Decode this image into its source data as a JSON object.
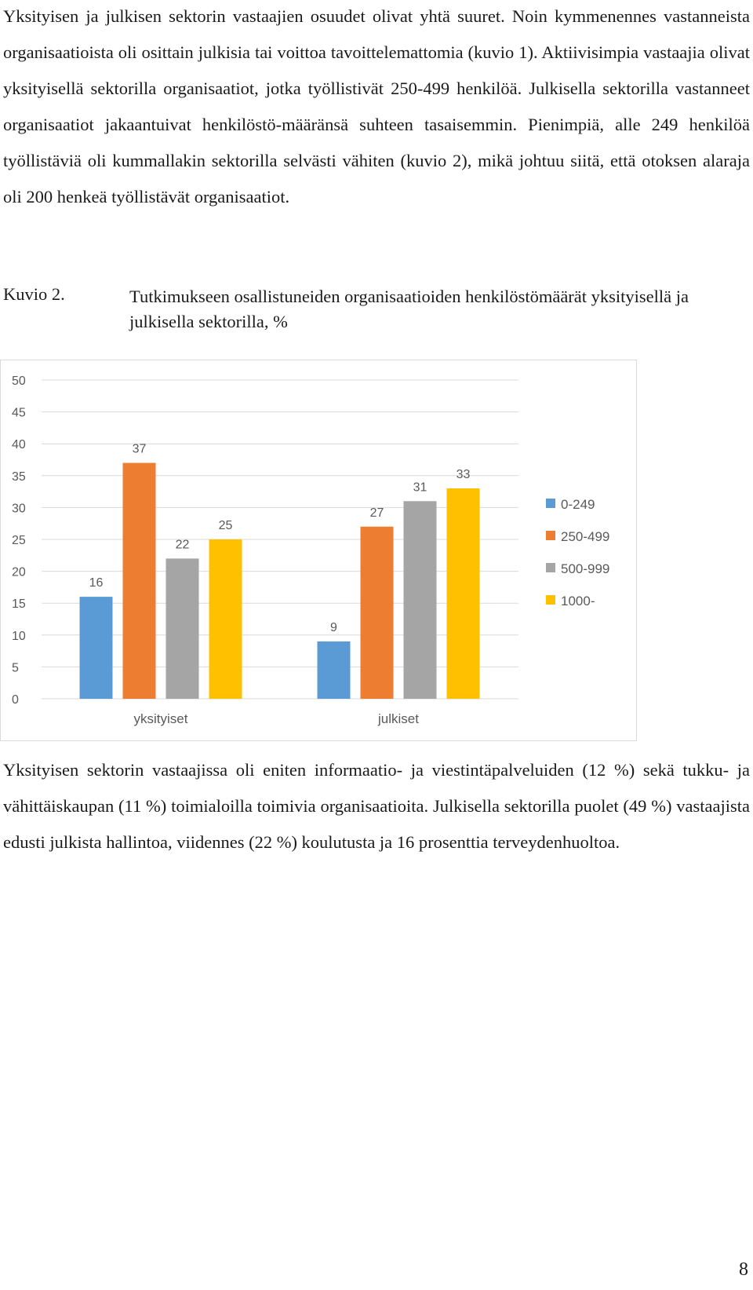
{
  "paragraph_before": "Yksityisen ja julkisen sektorin vastaajien osuudet olivat yhtä suuret. Noin kymmenennes vastanneista organisaatioista oli osittain julkisia tai voittoa tavoittelemattomia (kuvio 1). Aktiivisimpia vastaajia olivat yksityisellä sektorilla organisaatiot, jotka työllistivät 250-499 henkilöä. Julkisella sektorilla vastanneet organisaatiot jakaantuivat henkilöstö-määränsä suhteen tasaisemmin. Pienimpiä, alle 249 henkilöä työllistäviä oli kummallakin sektorilla selvästi vähiten (kuvio 2), mikä johtuu siitä, että otoksen alaraja oli 200 henkeä työllistävät organisaatiot.",
  "caption": {
    "label": "Kuvio 2.",
    "text": "Tutkimukseen osallistuneiden organisaatioiden henkilöstömäärät yksityisellä ja julkisella sektorilla, %"
  },
  "chart_data": {
    "type": "bar",
    "title": "",
    "xlabel": "",
    "ylabel": "",
    "categories": [
      "yksityiset",
      "julkiset"
    ],
    "series": [
      {
        "name": "0-249",
        "color": "#5b9bd5",
        "values": [
          16,
          9
        ]
      },
      {
        "name": "250-499",
        "color": "#ed7d31",
        "values": [
          37,
          27
        ]
      },
      {
        "name": "500-999",
        "color": "#a5a5a5",
        "values": [
          22,
          31
        ]
      },
      {
        "name": "1000-",
        "color": "#ffc000",
        "values": [
          25,
          33
        ]
      }
    ],
    "ylim": [
      0,
      50
    ],
    "yticks": [
      0,
      5,
      10,
      15,
      20,
      25,
      30,
      35,
      40,
      45,
      50
    ],
    "grid": true,
    "legend": "right",
    "data_labels": true
  },
  "paragraph_after": "Yksityisen sektorin vastaajissa oli eniten informaatio- ja viestintäpalveluiden (12 %) sekä tukku- ja vähittäiskaupan (11 %) toimialoilla toimivia organisaatioita. Julkisella sektorilla puolet (49 %) vastaajista edusti julkista hallintoa, viidennes (22 %) koulutusta ja 16 prosenttia terveydenhuoltoa.",
  "page_number": "8"
}
